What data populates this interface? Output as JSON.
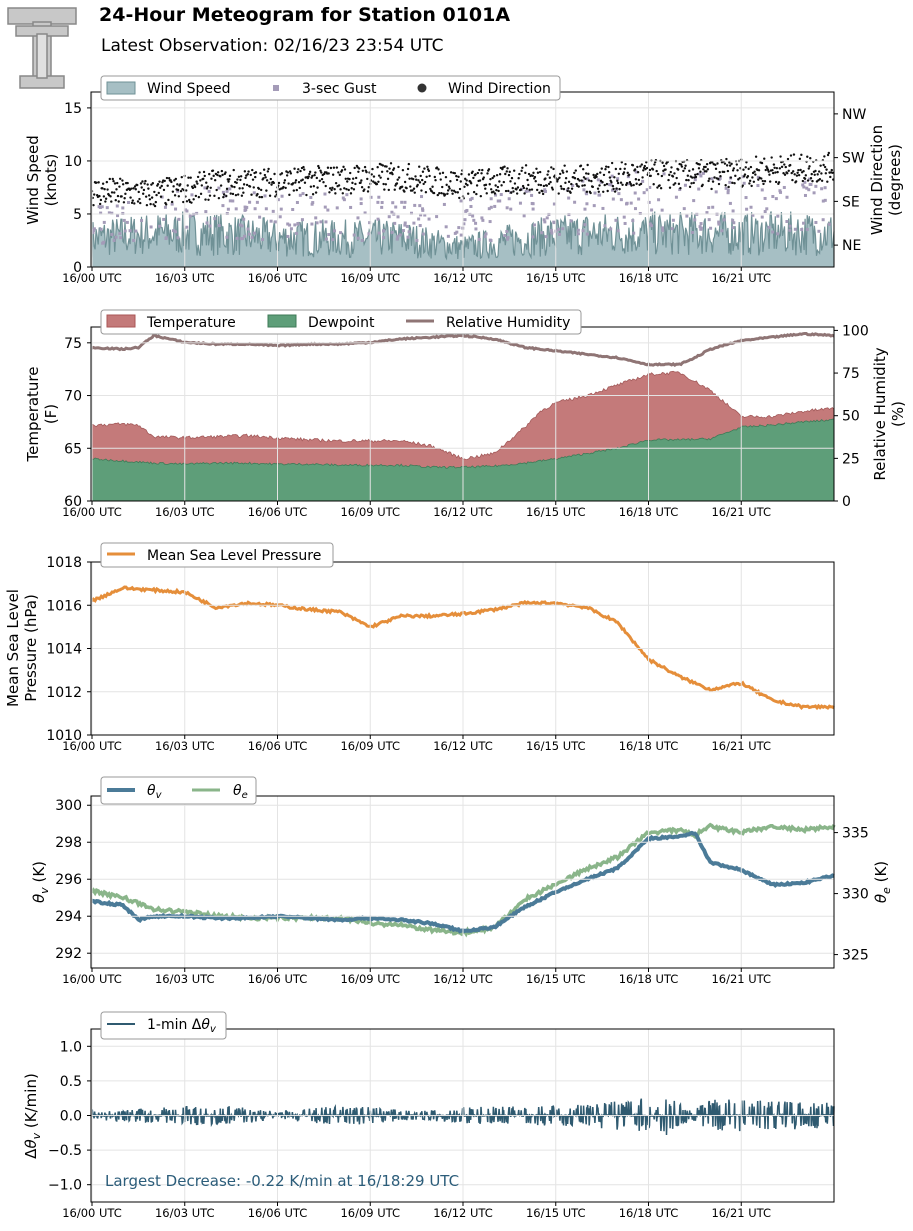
{
  "header": {
    "title": "24-Hour Meteogram for Station 0101A",
    "subtitle": "Latest Observation: 02/16/23 23:54 UTC",
    "logo": "texas-tech-double-t-logo"
  },
  "colors": {
    "wind_speed": "#a6bfc4",
    "wind_speed_line": "#6f9196",
    "gust": "#a49bb8",
    "direction": "#111111",
    "temperature": "#c47a7a",
    "dewpoint": "#5e9e79",
    "rh": "#8f7575",
    "pressure": "#e58e3a",
    "theta_v": "#4b7b98",
    "theta_e": "#8ab58a",
    "dtheta": "#2f5a70",
    "annotation": "#2c5d7a"
  },
  "x_ticks": [
    "16/00 UTC",
    "16/03 UTC",
    "16/06 UTC",
    "16/09 UTC",
    "16/12 UTC",
    "16/15 UTC",
    "16/18 UTC",
    "16/21 UTC"
  ],
  "chart_data": [
    {
      "id": "wind",
      "type": "area",
      "ylabel": [
        "Wind Speed",
        "(knots)"
      ],
      "ylabel2": [
        "Wind Direction",
        "(degrees)"
      ],
      "ylim": [
        0,
        16.5
      ],
      "yticks": [
        0,
        5,
        10,
        15
      ],
      "y2ticks": [
        {
          "label": "NE",
          "value": 45
        },
        {
          "label": "SE",
          "value": 135
        },
        {
          "label": "SW",
          "value": 225
        },
        {
          "label": "NW",
          "value": 315
        }
      ],
      "y2lim": [
        0,
        360
      ],
      "legend": [
        "Wind Speed",
        "3-sec Gust",
        "Wind Direction"
      ],
      "series": [
        {
          "name": "Wind Speed",
          "x": [
            0,
            2,
            4,
            6,
            8,
            10,
            12,
            14,
            16,
            18,
            20,
            22,
            24
          ],
          "values": [
            3,
            3.5,
            3.5,
            3,
            3,
            3,
            2,
            3,
            3.5,
            3.5,
            3.5,
            3.5,
            3.5
          ]
        },
        {
          "name": "3-sec Gust",
          "x": [
            0,
            2,
            4,
            6,
            8,
            10,
            12,
            14,
            16,
            18,
            20,
            22,
            24
          ],
          "values": [
            4,
            5,
            5.5,
            5,
            5,
            5,
            4.5,
            5.5,
            6,
            6.5,
            6.5,
            6,
            6
          ]
        },
        {
          "name": "Wind Direction",
          "x": [
            0,
            2,
            4,
            6,
            8,
            10,
            12,
            14,
            16,
            18,
            20,
            22,
            24
          ],
          "values": [
            155,
            150,
            170,
            175,
            180,
            185,
            170,
            180,
            180,
            190,
            190,
            200,
            205
          ]
        }
      ]
    },
    {
      "id": "temperature",
      "type": "area",
      "ylabel": [
        "Temperature",
        "(F)"
      ],
      "ylabel2": [
        "Relative Humidity",
        "(%)"
      ],
      "ylim": [
        60,
        76.5
      ],
      "yticks": [
        60,
        65,
        70,
        75
      ],
      "y2lim": [
        0,
        102
      ],
      "y2ticks": [
        0,
        25,
        50,
        75,
        100
      ],
      "legend": [
        "Temperature",
        "Dewpoint",
        "Relative Humidity"
      ],
      "series": [
        {
          "name": "Temperature",
          "x": [
            0,
            1,
            1.5,
            2,
            3,
            4,
            5,
            6,
            7,
            8,
            9,
            10,
            11,
            12,
            13,
            14,
            14.5,
            15,
            16,
            17,
            18,
            19,
            20,
            21,
            22,
            23,
            24
          ],
          "values": [
            67.2,
            67.3,
            67.2,
            66.1,
            66.0,
            66.1,
            66.2,
            66.0,
            65.8,
            65.7,
            65.7,
            65.7,
            65.2,
            64.0,
            64.5,
            67.0,
            68.5,
            69.3,
            70.0,
            71.0,
            72.0,
            72.2,
            70.5,
            68.0,
            68.0,
            68.5,
            68.8
          ]
        },
        {
          "name": "Dewpoint",
          "x": [
            0,
            1,
            2,
            3,
            4,
            5,
            6,
            7,
            8,
            9,
            10,
            11,
            12,
            13,
            14,
            15,
            16,
            17,
            18,
            19,
            20,
            21,
            22,
            23,
            24
          ],
          "values": [
            64.0,
            63.8,
            63.6,
            63.5,
            63.6,
            63.6,
            63.5,
            63.5,
            63.4,
            63.4,
            63.4,
            63.2,
            63.2,
            63.3,
            63.6,
            64.0,
            64.5,
            65.0,
            65.8,
            65.8,
            65.9,
            67.0,
            67.2,
            67.5,
            67.7
          ]
        },
        {
          "name": "Relative Humidity",
          "x": [
            0,
            1,
            1.5,
            2,
            3,
            4,
            5,
            6,
            7,
            8,
            9,
            10,
            11,
            12,
            13,
            14,
            15,
            16,
            17,
            18,
            19,
            19.5,
            20,
            21,
            22,
            23,
            24
          ],
          "values": [
            90,
            89,
            90,
            97,
            93,
            92,
            92,
            91,
            92,
            92,
            93,
            95,
            96,
            97,
            95,
            90,
            88,
            86,
            84,
            80,
            80,
            84,
            89,
            94,
            96,
            98,
            97
          ]
        }
      ]
    },
    {
      "id": "pressure",
      "type": "line",
      "ylabel": [
        "Mean Sea Level",
        "Pressure (hPa)"
      ],
      "ylim": [
        1010,
        1018
      ],
      "yticks": [
        1010,
        1012,
        1014,
        1016,
        1018
      ],
      "legend": [
        "Mean Sea Level Pressure"
      ],
      "series": [
        {
          "name": "Mean Sea Level Pressure",
          "x": [
            0,
            1,
            2,
            3,
            4,
            5,
            6,
            7,
            8,
            9,
            10,
            11,
            12,
            13,
            14,
            15,
            16,
            17,
            18,
            19,
            20,
            21,
            22,
            23,
            24
          ],
          "values": [
            1016.2,
            1016.8,
            1016.7,
            1016.6,
            1015.9,
            1016.1,
            1016.0,
            1015.8,
            1015.7,
            1015.0,
            1015.5,
            1015.5,
            1015.6,
            1015.8,
            1016.1,
            1016.1,
            1015.9,
            1015.2,
            1013.5,
            1012.7,
            1012.1,
            1012.4,
            1011.6,
            1011.3,
            1011.3
          ]
        }
      ]
    },
    {
      "id": "theta",
      "type": "line",
      "ylabel": [
        "θv (K)"
      ],
      "ylabel2": [
        "θe (K)"
      ],
      "ylim": [
        291.2,
        300.5
      ],
      "yticks": [
        292,
        294,
        296,
        298,
        300
      ],
      "y2lim": [
        323.9,
        338.0
      ],
      "y2ticks": [
        325,
        330,
        335
      ],
      "legend": [
        "θv",
        "θe"
      ],
      "series": [
        {
          "name": "θv",
          "x": [
            0,
            1,
            1.5,
            2,
            3,
            4,
            5,
            6,
            7,
            8,
            9,
            10,
            11,
            12,
            13,
            14,
            15,
            16,
            17,
            18,
            19,
            19.5,
            20,
            21,
            22,
            23,
            24
          ],
          "values": [
            294.8,
            294.6,
            293.8,
            294.0,
            294.0,
            293.9,
            293.9,
            294.0,
            293.9,
            293.8,
            293.9,
            293.8,
            293.6,
            293.2,
            293.4,
            294.5,
            295.3,
            296.0,
            296.6,
            298.2,
            298.3,
            298.5,
            296.9,
            296.5,
            295.7,
            295.8,
            296.2
          ]
        },
        {
          "name": "θe",
          "x": [
            0,
            1,
            1.5,
            2,
            3,
            4,
            5,
            6,
            7,
            8,
            9,
            10,
            11,
            12,
            13,
            14,
            15,
            16,
            17,
            18,
            19,
            19.5,
            20,
            21,
            22,
            23,
            24
          ],
          "values": [
            330.2,
            329.7,
            329.2,
            328.7,
            328.5,
            328.2,
            328.0,
            328.0,
            328.0,
            328.0,
            327.6,
            327.4,
            327.0,
            326.8,
            327.2,
            329.5,
            330.8,
            332.0,
            333.0,
            335.0,
            335.2,
            334.8,
            335.5,
            335.0,
            335.5,
            335.2,
            335.5
          ]
        }
      ]
    },
    {
      "id": "dtheta",
      "type": "line",
      "ylabel": [
        "Δθv (K/min)"
      ],
      "ylim": [
        -1.25,
        1.25
      ],
      "yticks": [
        -1.0,
        -0.5,
        0.0,
        0.5,
        1.0
      ],
      "ytick_labels": [
        "−1.0",
        "−0.5",
        "0.0",
        "0.5",
        "1.0"
      ],
      "legend": [
        "1-min Δθv"
      ],
      "annotation": "Largest Decrease: -0.22 K/min at 16/18:29 UTC",
      "series": [
        {
          "name": "1-min Δθv",
          "x": [
            0,
            4,
            8,
            12,
            16,
            18,
            18.48,
            20,
            24
          ],
          "values": [
            0.0,
            0.08,
            -0.08,
            0.05,
            0.08,
            0.18,
            -0.22,
            0.15,
            0.1
          ]
        }
      ]
    }
  ]
}
